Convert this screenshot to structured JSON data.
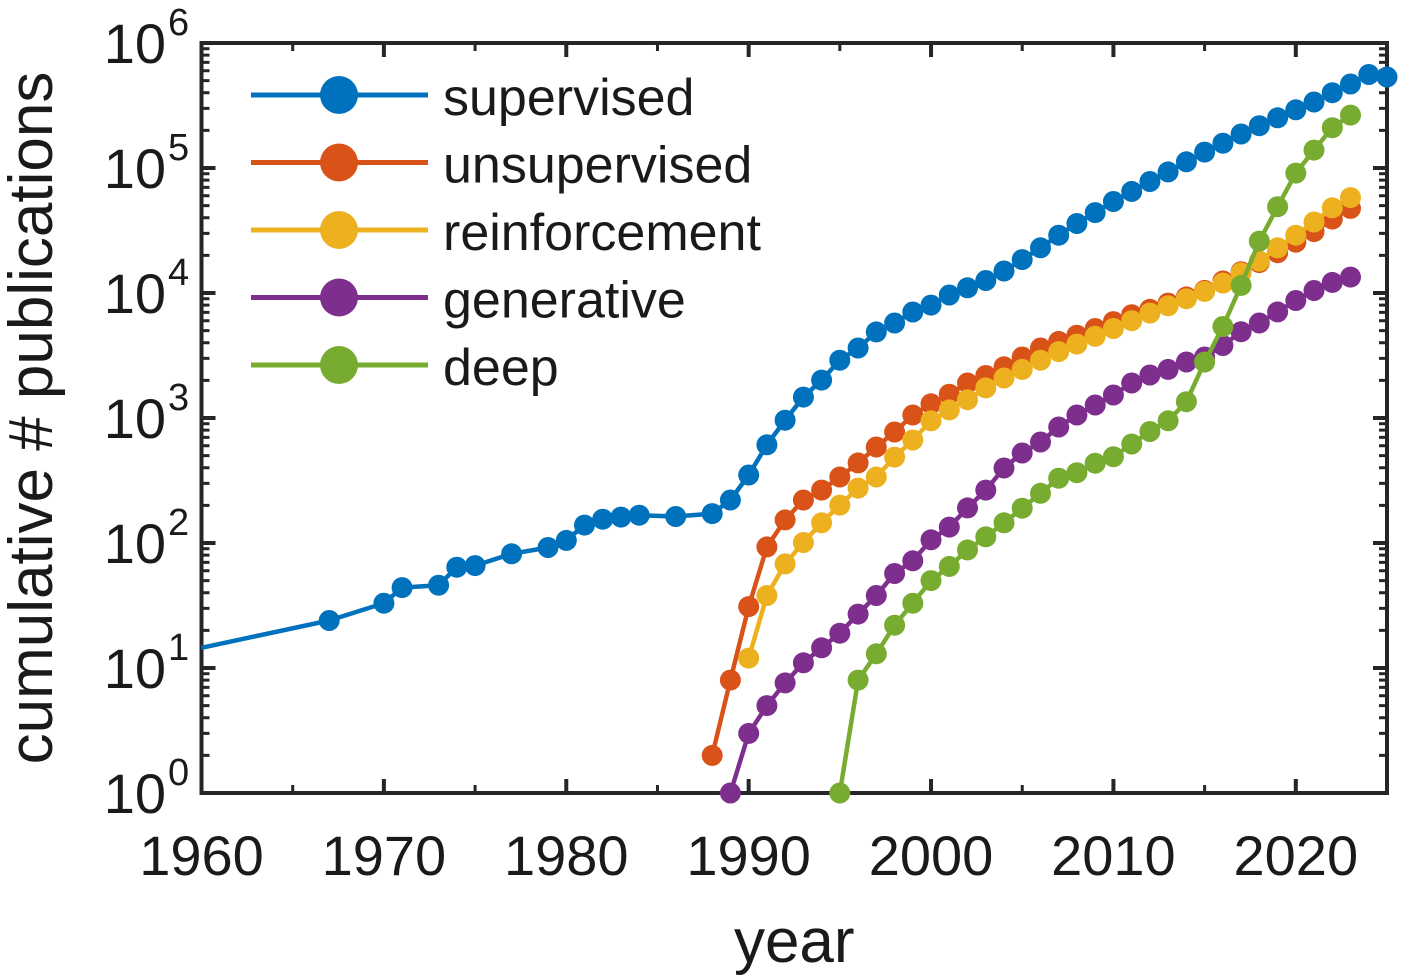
{
  "figure": {
    "background": "#ffffff",
    "axis_color": "#262626",
    "text_color": "#1a1a1a"
  },
  "chart_data": {
    "type": "line",
    "title": "",
    "xlabel": "year",
    "ylabel": "cumulative # publications",
    "xlim": [
      1960,
      2025
    ],
    "ylim": [
      1,
      1000000
    ],
    "ylog": true,
    "grid": false,
    "x_major_ticks": [
      1960,
      1970,
      1980,
      1990,
      2000,
      2010,
      2020
    ],
    "x_tick_labels": [
      "1960",
      "1970",
      "1980",
      "1990",
      "2000",
      "2010",
      "2020"
    ],
    "x_minor_step": 5,
    "y_tick_exponents": [
      0,
      1,
      2,
      3,
      4,
      5,
      6
    ],
    "y_tick_label_base": "10",
    "legend": {
      "position": "top-left-inside",
      "box": false
    },
    "series": [
      {
        "name": "supervised",
        "color": "#0072BD",
        "points": [
          [
            1960,
            14.5,
            0
          ],
          [
            1967,
            24
          ],
          [
            1970,
            33
          ],
          [
            1971,
            44
          ],
          [
            1973,
            46
          ],
          [
            1974,
            64
          ],
          [
            1975,
            66
          ],
          [
            1977,
            82
          ],
          [
            1979,
            92
          ],
          [
            1980,
            105
          ],
          [
            1981,
            139
          ],
          [
            1982,
            155
          ],
          [
            1983,
            161
          ],
          [
            1984,
            167
          ],
          [
            1986,
            163
          ],
          [
            1988,
            172
          ],
          [
            1989,
            221
          ],
          [
            1990,
            350
          ],
          [
            1991,
            610
          ],
          [
            1992,
            960
          ],
          [
            1993,
            1470
          ],
          [
            1994,
            2010
          ],
          [
            1995,
            2900
          ],
          [
            1996,
            3630
          ],
          [
            1997,
            4880
          ],
          [
            1998,
            5750
          ],
          [
            1999,
            7050
          ],
          [
            2000,
            8000
          ],
          [
            2001,
            9640
          ],
          [
            2002,
            11000
          ],
          [
            2003,
            12600
          ],
          [
            2004,
            15000
          ],
          [
            2005,
            18500
          ],
          [
            2006,
            23000
          ],
          [
            2007,
            29000
          ],
          [
            2008,
            36000
          ],
          [
            2009,
            44000
          ],
          [
            2010,
            54000
          ],
          [
            2011,
            65000
          ],
          [
            2012,
            78000
          ],
          [
            2013,
            93000
          ],
          [
            2014,
            112000
          ],
          [
            2015,
            134000
          ],
          [
            2016,
            158000
          ],
          [
            2017,
            187000
          ],
          [
            2018,
            218000
          ],
          [
            2019,
            252000
          ],
          [
            2020,
            292000
          ],
          [
            2021,
            337000
          ],
          [
            2022,
            400000
          ],
          [
            2023,
            470000
          ],
          [
            2024,
            560000
          ],
          [
            2025,
            535000
          ]
        ]
      },
      {
        "name": "unsupervised",
        "color": "#D95319",
        "points": [
          [
            1988,
            2
          ],
          [
            1989,
            8
          ],
          [
            1990,
            31
          ],
          [
            1991,
            93
          ],
          [
            1992,
            153
          ],
          [
            1993,
            221
          ],
          [
            1994,
            265
          ],
          [
            1995,
            337
          ],
          [
            1996,
            437
          ],
          [
            1997,
            586
          ],
          [
            1998,
            773
          ],
          [
            1999,
            1057
          ],
          [
            2000,
            1300
          ],
          [
            2001,
            1550
          ],
          [
            2002,
            1905
          ],
          [
            2003,
            2188
          ],
          [
            2004,
            2570
          ],
          [
            2005,
            3076
          ],
          [
            2006,
            3631
          ],
          [
            2007,
            4100
          ],
          [
            2008,
            4600
          ],
          [
            2009,
            5200
          ],
          [
            2010,
            5900
          ],
          [
            2011,
            6700
          ],
          [
            2012,
            7400
          ],
          [
            2013,
            8300
          ],
          [
            2014,
            9300
          ],
          [
            2015,
            10500
          ],
          [
            2016,
            12500
          ],
          [
            2017,
            14800
          ],
          [
            2018,
            17500
          ],
          [
            2019,
            21000
          ],
          [
            2020,
            25500
          ],
          [
            2021,
            31000
          ],
          [
            2022,
            39000
          ],
          [
            2023,
            47500
          ]
        ]
      },
      {
        "name": "reinforcement",
        "color": "#EDB120",
        "points": [
          [
            1990,
            12
          ],
          [
            1991,
            38
          ],
          [
            1992,
            68
          ],
          [
            1993,
            101
          ],
          [
            1994,
            145
          ],
          [
            1995,
            201
          ],
          [
            1996,
            275
          ],
          [
            1997,
            337
          ],
          [
            1998,
            487
          ],
          [
            1999,
            667
          ],
          [
            2000,
            950
          ],
          [
            2001,
            1160
          ],
          [
            2002,
            1400
          ],
          [
            2003,
            1740
          ],
          [
            2004,
            2090
          ],
          [
            2005,
            2450
          ],
          [
            2006,
            2900
          ],
          [
            2007,
            3400
          ],
          [
            2008,
            3900
          ],
          [
            2009,
            4500
          ],
          [
            2010,
            5200
          ],
          [
            2011,
            6000
          ],
          [
            2012,
            6900
          ],
          [
            2013,
            7900
          ],
          [
            2014,
            9000
          ],
          [
            2015,
            10300
          ],
          [
            2016,
            12000
          ],
          [
            2017,
            14500
          ],
          [
            2018,
            18000
          ],
          [
            2019,
            23000
          ],
          [
            2020,
            29000
          ],
          [
            2021,
            37000
          ],
          [
            2022,
            48000
          ],
          [
            2023,
            58000
          ]
        ]
      },
      {
        "name": "generative",
        "color": "#7E2F8E",
        "points": [
          [
            1989,
            1
          ],
          [
            1990,
            3
          ],
          [
            1991,
            5
          ],
          [
            1992,
            7.6
          ],
          [
            1993,
            11
          ],
          [
            1994,
            14.5
          ],
          [
            1995,
            19
          ],
          [
            1996,
            27
          ],
          [
            1997,
            38
          ],
          [
            1998,
            57
          ],
          [
            1999,
            72
          ],
          [
            2000,
            106
          ],
          [
            2001,
            134
          ],
          [
            2002,
            191
          ],
          [
            2003,
            265
          ],
          [
            2004,
            398
          ],
          [
            2005,
            525
          ],
          [
            2006,
            643
          ],
          [
            2007,
            847
          ],
          [
            2008,
            1057
          ],
          [
            2009,
            1271
          ],
          [
            2010,
            1528
          ],
          [
            2011,
            1905
          ],
          [
            2012,
            2208
          ],
          [
            2013,
            2450
          ],
          [
            2014,
            2805
          ],
          [
            2015,
            3076
          ],
          [
            2016,
            3800
          ],
          [
            2017,
            4900
          ],
          [
            2018,
            5750
          ],
          [
            2019,
            7060
          ],
          [
            2020,
            8710
          ],
          [
            2021,
            10470
          ],
          [
            2022,
            12150
          ],
          [
            2023,
            13400
          ]
        ]
      },
      {
        "name": "deep",
        "color": "#77AC30",
        "points": [
          [
            1995,
            1
          ],
          [
            1996,
            8
          ],
          [
            1997,
            13
          ],
          [
            1998,
            22
          ],
          [
            1999,
            33
          ],
          [
            2000,
            50
          ],
          [
            2001,
            65
          ],
          [
            2002,
            88
          ],
          [
            2003,
            112
          ],
          [
            2004,
            145
          ],
          [
            2005,
            190
          ],
          [
            2006,
            250
          ],
          [
            2007,
            330
          ],
          [
            2008,
            365
          ],
          [
            2009,
            435
          ],
          [
            2010,
            490
          ],
          [
            2011,
            620
          ],
          [
            2012,
            780
          ],
          [
            2013,
            950
          ],
          [
            2014,
            1350
          ],
          [
            2015,
            2800
          ],
          [
            2016,
            5400
          ],
          [
            2017,
            11500
          ],
          [
            2018,
            26000
          ],
          [
            2019,
            49000
          ],
          [
            2020,
            91000
          ],
          [
            2021,
            139000
          ],
          [
            2022,
            210000
          ],
          [
            2023,
            265000
          ]
        ]
      }
    ]
  }
}
